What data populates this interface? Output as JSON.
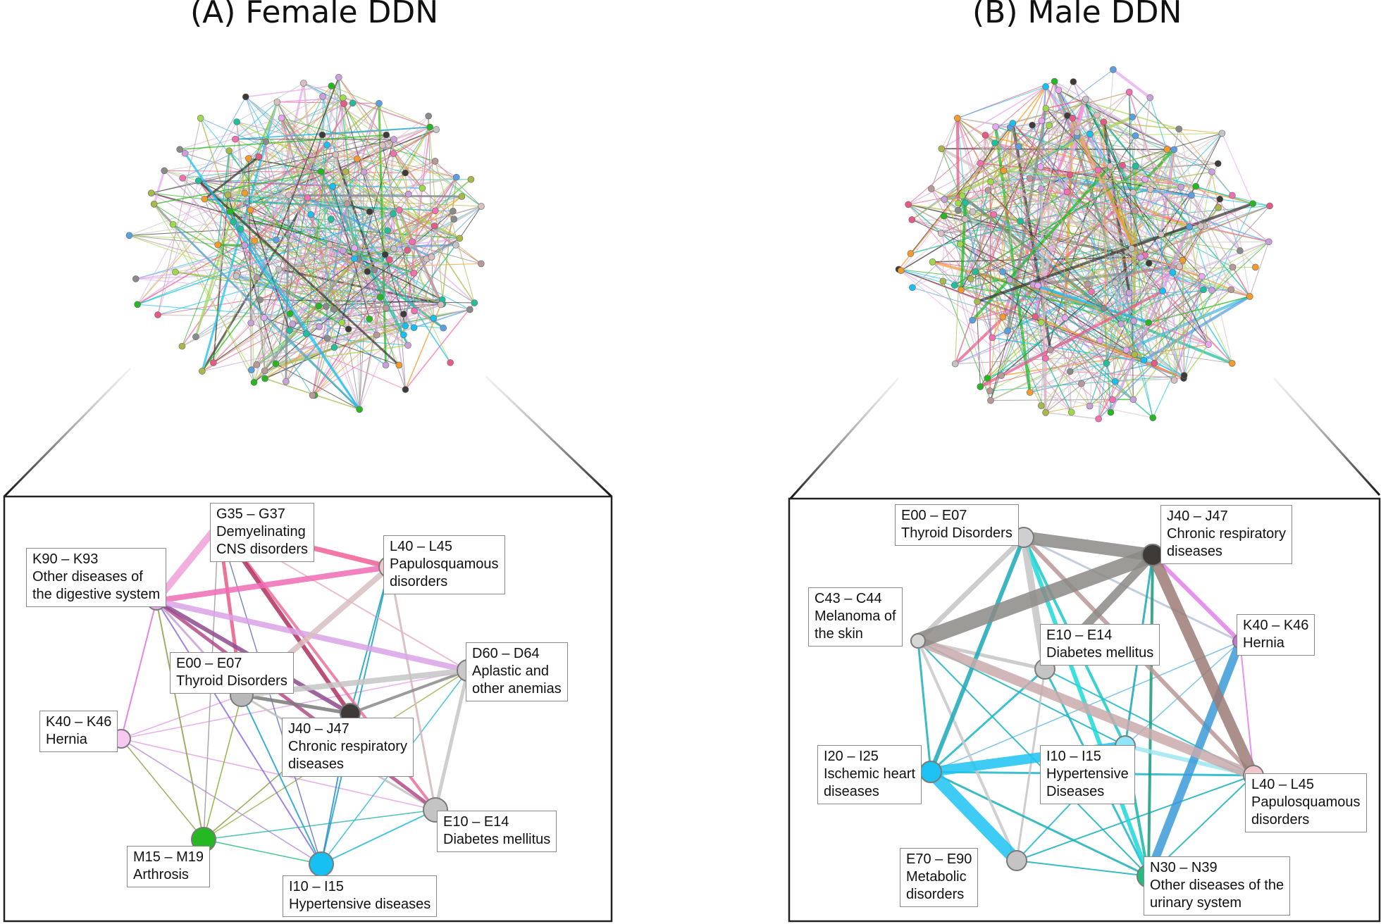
{
  "panels": [
    {
      "id": "A",
      "title": "(A) Female DDN",
      "nodes": [
        {
          "id": "G35",
          "code": "G35 – G37",
          "desc": [
            "Demyelinating",
            "CNS disorders"
          ],
          "color": "#f56fb0"
        },
        {
          "id": "L40",
          "code": "L40 – L45",
          "desc": [
            "Papulosquamous",
            "disorders"
          ],
          "color": "#f0c8cc"
        },
        {
          "id": "K90",
          "code": "K90 – K93",
          "desc": [
            "Other diseases of",
            "the digestive system"
          ],
          "color": "#e7a8ef"
        },
        {
          "id": "D60",
          "code": "D60 – D64",
          "desc": [
            "Aplastic and",
            "other anemias"
          ],
          "color": "#c8c8c8"
        },
        {
          "id": "E00",
          "code": "E00 – E07",
          "desc": [
            "Thyroid Disorders"
          ],
          "color": "#b8b8b8"
        },
        {
          "id": "J40",
          "code": "J40 – J47",
          "desc": [
            "Chronic respiratory",
            "diseases"
          ],
          "color": "#3d3a38"
        },
        {
          "id": "K40",
          "code": "K40 – K46",
          "desc": [
            "Hernia"
          ],
          "color": "#f7c8f2"
        },
        {
          "id": "E10",
          "code": "E10 – E14",
          "desc": [
            "Diabetes mellitus"
          ],
          "color": "#c4c4c4"
        },
        {
          "id": "M15",
          "code": "M15 – M19",
          "desc": [
            "Arthrosis"
          ],
          "color": "#25b822"
        },
        {
          "id": "I10",
          "code": "I10 – I15",
          "desc": [
            "Hypertensive diseases"
          ],
          "color": "#16c0f2"
        }
      ],
      "edges": [
        {
          "from": "K90",
          "to": "L40",
          "color": "#f06bb5",
          "weight": 8
        },
        {
          "from": "G35",
          "to": "K90",
          "color": "#f0a0d8",
          "weight": 10
        },
        {
          "from": "G35",
          "to": "L40",
          "color": "#f05f95",
          "weight": 7
        },
        {
          "from": "K90",
          "to": "E10",
          "color": "#b34b88",
          "weight": 5
        },
        {
          "from": "K90",
          "to": "D60",
          "color": "#d9a2e6",
          "weight": 8
        },
        {
          "from": "K90",
          "to": "J40",
          "color": "#8e4a8e",
          "weight": 6
        },
        {
          "from": "G35",
          "to": "J40",
          "color": "#b03060",
          "weight": 6
        },
        {
          "from": "G35",
          "to": "E00",
          "color": "#e85a86",
          "weight": 5
        },
        {
          "from": "E00",
          "to": "L40",
          "color": "#d8bec0",
          "weight": 8
        },
        {
          "from": "E00",
          "to": "D60",
          "color": "#c6c6c6",
          "weight": 8
        },
        {
          "from": "E00",
          "to": "J40",
          "color": "#7a7a7a",
          "weight": 5
        },
        {
          "from": "J40",
          "to": "D60",
          "color": "#8a8a8a",
          "weight": 4
        },
        {
          "from": "D60",
          "to": "E10",
          "color": "#c6c6c6",
          "weight": 5
        },
        {
          "from": "G35",
          "to": "E10",
          "color": "#ec6f9c",
          "weight": 4
        },
        {
          "from": "L40",
          "to": "E10",
          "color": "#d4b6ba",
          "weight": 3
        },
        {
          "from": "E00",
          "to": "E10",
          "color": "#c0c0c0",
          "weight": 3
        },
        {
          "from": "K90",
          "to": "E00",
          "color": "#c9a0d9",
          "weight": 3
        },
        {
          "from": "L40",
          "to": "I10",
          "color": "#1aa0c8",
          "weight": 2
        },
        {
          "from": "E00",
          "to": "I10",
          "color": "#1aa0c8",
          "weight": 2
        },
        {
          "from": "K90",
          "to": "I10",
          "color": "#8d6fd8",
          "weight": 2
        },
        {
          "from": "K90",
          "to": "M15",
          "color": "#8da04a",
          "weight": 2
        },
        {
          "from": "K40",
          "to": "I10",
          "color": "#b48adc",
          "weight": 1.5
        },
        {
          "from": "K40",
          "to": "E00",
          "color": "#e5a0e8",
          "weight": 1.5
        },
        {
          "from": "K40",
          "to": "D60",
          "color": "#e5a0e8",
          "weight": 1.5
        },
        {
          "from": "K40",
          "to": "E10",
          "color": "#e5a0e8",
          "weight": 1.5
        },
        {
          "from": "K40",
          "to": "K90",
          "color": "#e070e0",
          "weight": 2
        },
        {
          "from": "K40",
          "to": "M15",
          "color": "#8da04a",
          "weight": 1.5
        },
        {
          "from": "M15",
          "to": "E00",
          "color": "#7ab020",
          "weight": 1.5
        },
        {
          "from": "M15",
          "to": "D60",
          "color": "#9ab050",
          "weight": 1.5
        },
        {
          "from": "M15",
          "to": "I10",
          "color": "#27c07a",
          "weight": 1.5
        },
        {
          "from": "M15",
          "to": "E10",
          "color": "#2fb8a8",
          "weight": 1.5
        },
        {
          "from": "I10",
          "to": "E10",
          "color": "#29b8d8",
          "weight": 2
        },
        {
          "from": "I10",
          "to": "D60",
          "color": "#29b8d8",
          "weight": 1.5
        },
        {
          "from": "I10",
          "to": "J40",
          "color": "#2a8ad8",
          "weight": 2
        },
        {
          "from": "G35",
          "to": "I10",
          "color": "#6a70c0",
          "weight": 1.5
        },
        {
          "from": "M15",
          "to": "G35",
          "color": "#9a9a9a",
          "weight": 1.5
        },
        {
          "from": "M15",
          "to": "J40",
          "color": "#8a9a3a",
          "weight": 1.5
        },
        {
          "from": "G35",
          "to": "D60",
          "color": "#e8b0c8",
          "weight": 2
        },
        {
          "from": "L40",
          "to": "J40",
          "color": "#1a9fb0",
          "weight": 2
        }
      ]
    },
    {
      "id": "B",
      "title": "(B) Male DDN",
      "nodes": [
        {
          "id": "E00",
          "code": "E00 – E07",
          "desc": [
            "Thyroid Disorders"
          ],
          "color": "#cfcfcf"
        },
        {
          "id": "J40",
          "code": "J40 – J47",
          "desc": [
            "Chronic respiratory",
            "diseases"
          ],
          "color": "#3d3a38"
        },
        {
          "id": "C43",
          "code": "C43 – C44",
          "desc": [
            "Melanoma of",
            "the skin"
          ],
          "color": "#d6d6d6"
        },
        {
          "id": "K40",
          "code": "K40 – K46",
          "desc": [
            "Hernia"
          ],
          "color": "#d66ee2"
        },
        {
          "id": "E10",
          "code": "E10 – E14",
          "desc": [
            "Diabetes mellitus"
          ],
          "color": "#c4c4c4"
        },
        {
          "id": "I20",
          "code": "I20 – I25",
          "desc": [
            "Ischemic heart",
            "diseases"
          ],
          "color": "#1cc3f2"
        },
        {
          "id": "I10",
          "code": "I10 – I15",
          "desc": [
            "Hypertensive",
            "Diseases"
          ],
          "color": "#8fe4f7"
        },
        {
          "id": "L40",
          "code": "L40 – L45",
          "desc": [
            "Papulosquamous",
            "disorders"
          ],
          "color": "#f0c8cc"
        },
        {
          "id": "E70",
          "code": "E70 – E90",
          "desc": [
            "Metabolic",
            "disorders"
          ],
          "color": "#c4c4c4"
        },
        {
          "id": "N30",
          "code": "N30 – N39",
          "desc": [
            "Other diseases of the",
            "urinary system"
          ],
          "color": "#1fbf7c"
        }
      ],
      "edges": [
        {
          "from": "C43",
          "to": "J40",
          "color": "#8c8a86",
          "weight": 22
        },
        {
          "from": "E00",
          "to": "J40",
          "color": "#8c8a86",
          "weight": 18
        },
        {
          "from": "J40",
          "to": "L40",
          "color": "#9c7b76",
          "weight": 16
        },
        {
          "from": "C43",
          "to": "L40",
          "color": "#c9aaaa",
          "weight": 14
        },
        {
          "from": "E10",
          "to": "J40",
          "color": "#8c8a86",
          "weight": 12
        },
        {
          "from": "E00",
          "to": "E10",
          "color": "#c4c4c4",
          "weight": 10
        },
        {
          "from": "I20",
          "to": "I10",
          "color": "#1cc3f2",
          "weight": 14
        },
        {
          "from": "I20",
          "to": "E70",
          "color": "#1cc3f2",
          "weight": 18
        },
        {
          "from": "K40",
          "to": "N30",
          "color": "#3b9ad8",
          "weight": 12
        },
        {
          "from": "E00",
          "to": "C43",
          "color": "#c4c4c4",
          "weight": 7
        },
        {
          "from": "E00",
          "to": "L40",
          "color": "#b89898",
          "weight": 6
        },
        {
          "from": "J40",
          "to": "K40",
          "color": "#e080e8",
          "weight": 6
        },
        {
          "from": "E00",
          "to": "N30",
          "color": "#1ad8d8",
          "weight": 6
        },
        {
          "from": "I20",
          "to": "E00",
          "color": "#1aa8b8",
          "weight": 6
        },
        {
          "from": "C43",
          "to": "E10",
          "color": "#c4c4c4",
          "weight": 5
        },
        {
          "from": "I10",
          "to": "L40",
          "color": "#9ee6f2",
          "weight": 6
        },
        {
          "from": "E00",
          "to": "K40",
          "color": "#b8c4d8",
          "weight": 3
        },
        {
          "from": "J40",
          "to": "N30",
          "color": "#1a9a7a",
          "weight": 4
        },
        {
          "from": "I20",
          "to": "L40",
          "color": "#1ab6c8",
          "weight": 3
        },
        {
          "from": "E00",
          "to": "I10",
          "color": "#1ac8c8",
          "weight": 4
        },
        {
          "from": "C43",
          "to": "I20",
          "color": "#18b0b8",
          "weight": 3
        },
        {
          "from": "C43",
          "to": "E70",
          "color": "#c8c8c8",
          "weight": 4
        },
        {
          "from": "C43",
          "to": "N30",
          "color": "#18b0b8",
          "weight": 2
        },
        {
          "from": "E10",
          "to": "I20",
          "color": "#1ab6c8",
          "weight": 3
        },
        {
          "from": "E10",
          "to": "N30",
          "color": "#1ab6c8",
          "weight": 3
        },
        {
          "from": "E10",
          "to": "E70",
          "color": "#c4c4c4",
          "weight": 3
        },
        {
          "from": "K40",
          "to": "L40",
          "color": "#e080e8",
          "weight": 2
        },
        {
          "from": "K40",
          "to": "I20",
          "color": "#6ab8e8",
          "weight": 1.5
        },
        {
          "from": "I10",
          "to": "N30",
          "color": "#1ab6a8",
          "weight": 4
        },
        {
          "from": "I20",
          "to": "N30",
          "color": "#18b0b8",
          "weight": 3
        },
        {
          "from": "E70",
          "to": "N30",
          "color": "#18b0b8",
          "weight": 2
        },
        {
          "from": "E70",
          "to": "L40",
          "color": "#18b0b8",
          "weight": 2
        },
        {
          "from": "N30",
          "to": "L40",
          "color": "#18b0b8",
          "weight": 2
        },
        {
          "from": "E10",
          "to": "L40",
          "color": "#1ab6c8",
          "weight": 2
        },
        {
          "from": "J40",
          "to": "I10",
          "color": "#1aa8b8",
          "weight": 3
        },
        {
          "from": "K40",
          "to": "I10",
          "color": "#6ab8e8",
          "weight": 1.5
        },
        {
          "from": "C43",
          "to": "I10",
          "color": "#18b0b8",
          "weight": 2
        },
        {
          "from": "E70",
          "to": "I10",
          "color": "#1ab6c8",
          "weight": 2
        }
      ]
    }
  ]
}
